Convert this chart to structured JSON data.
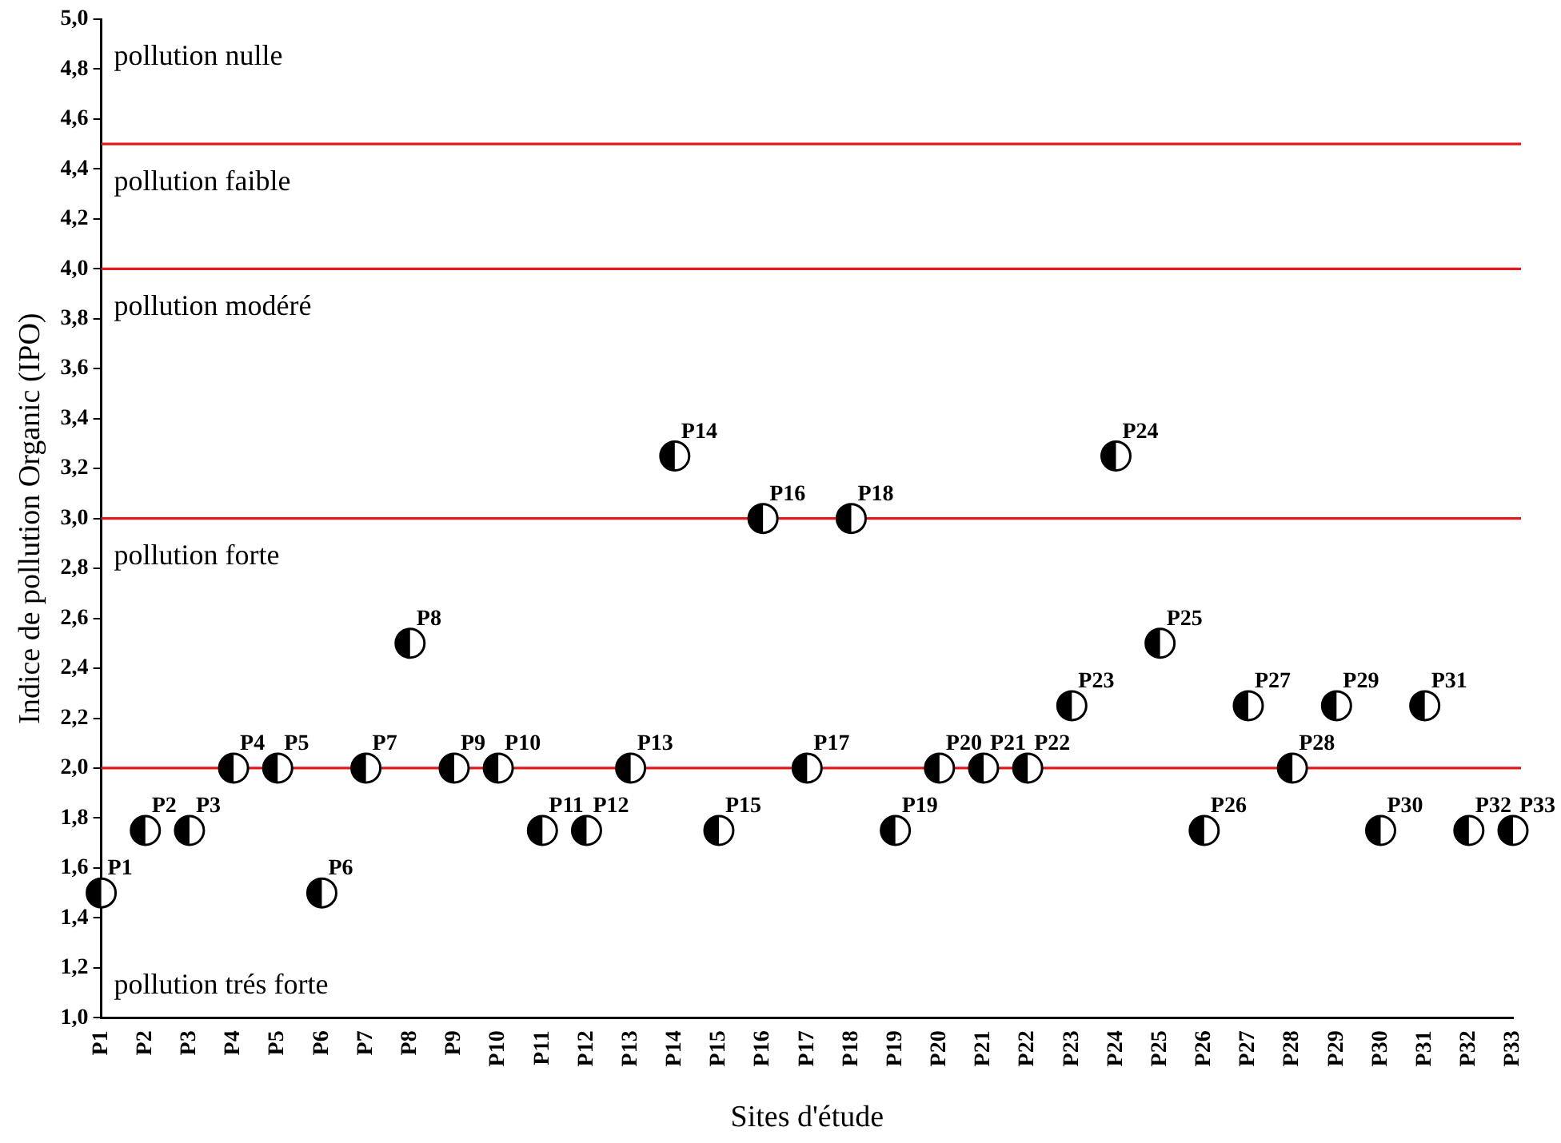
{
  "chart_data": {
    "type": "scatter",
    "xlabel": "Sites d'étude",
    "ylabel": "Indice de pollution Organic (IPO)",
    "categories": [
      "P1",
      "P2",
      "P3",
      "P4",
      "P5",
      "P6",
      "P7",
      "P8",
      "P9",
      "P10",
      "P11",
      "P12",
      "P13",
      "P14",
      "P15",
      "P16",
      "P17",
      "P18",
      "P19",
      "P20",
      "P21",
      "P22",
      "P23",
      "P24",
      "P25",
      "P26",
      "P27",
      "P28",
      "P29",
      "P30",
      "P31",
      "P32",
      "P33"
    ],
    "series": [
      {
        "color": "#000000",
        "values": [
          1.5,
          1.75,
          1.75,
          2.0,
          2.0,
          1.5,
          2.0,
          2.5,
          2.0,
          2.0,
          1.75,
          1.75,
          2.0,
          3.25,
          1.75,
          3.0,
          2.0,
          3.0,
          1.75,
          2.0,
          2.0,
          2.0,
          2.25,
          3.25,
          2.5,
          1.75,
          2.25,
          2.0,
          2.25,
          1.75,
          2.25,
          1.75,
          1.75
        ]
      }
    ],
    "marker": "circle",
    "legend": false,
    "grid": false,
    "ylim": [
      1.0,
      5.0
    ],
    "yticks": [
      {
        "value": 1.0,
        "label": "1,0"
      },
      {
        "value": 1.2,
        "label": "1,2"
      },
      {
        "value": 1.4,
        "label": "1,4"
      },
      {
        "value": 1.6,
        "label": "1,6"
      },
      {
        "value": 1.8,
        "label": "1,8"
      },
      {
        "value": 2.0,
        "label": "2,0"
      },
      {
        "value": 2.2,
        "label": "2,2"
      },
      {
        "value": 2.4,
        "label": "2,4"
      },
      {
        "value": 2.6,
        "label": "2,6"
      },
      {
        "value": 2.8,
        "label": "2,8"
      },
      {
        "value": 3.0,
        "label": "3,0"
      },
      {
        "value": 3.2,
        "label": "3,2"
      },
      {
        "value": 3.4,
        "label": "3,4"
      },
      {
        "value": 3.6,
        "label": "3,6"
      },
      {
        "value": 3.8,
        "label": "3,8"
      },
      {
        "value": 4.0,
        "label": "4,0"
      },
      {
        "value": 4.2,
        "label": "4,2"
      },
      {
        "value": 4.4,
        "label": "4,4"
      },
      {
        "value": 4.6,
        "label": "4,6"
      },
      {
        "value": 4.8,
        "label": "4,8"
      },
      {
        "value": 5.0,
        "label": "5,0"
      }
    ],
    "ref_lines": [
      {
        "axis": "y",
        "value": 4.5,
        "color": "#e31a1c"
      },
      {
        "axis": "y",
        "value": 4.0,
        "color": "#e31a1c"
      },
      {
        "axis": "y",
        "value": 3.0,
        "color": "#e31a1c"
      },
      {
        "axis": "y",
        "value": 2.0,
        "color": "#e31a1c"
      }
    ],
    "annotations": [
      "pollution nulle",
      "pollution faible",
      "pollution modéré",
      "pollution forte",
      "pollution trés forte",
      {
        "text": "P1",
        "x": "P1",
        "y": 1.5
      },
      {
        "text": "P2",
        "x": "P2",
        "y": 1.75
      },
      {
        "text": "P3",
        "x": "P3",
        "y": 1.75
      },
      {
        "text": "P4",
        "x": "P4",
        "y": 2.0
      },
      {
        "text": "P5",
        "x": "P5",
        "y": 2.0
      },
      {
        "text": "P6",
        "x": "P6",
        "y": 1.5
      },
      {
        "text": "P7",
        "x": "P7",
        "y": 2.0
      },
      {
        "text": "P8",
        "x": "P8",
        "y": 2.5
      },
      {
        "text": "P9",
        "x": "P9",
        "y": 2.0
      },
      {
        "text": "P10",
        "x": "P10",
        "y": 2.0
      },
      {
        "text": "P11",
        "x": "P11",
        "y": 1.75
      },
      {
        "text": "P12",
        "x": "P12",
        "y": 1.75
      },
      {
        "text": "P13",
        "x": "P13",
        "y": 2.0
      },
      {
        "text": "P14",
        "x": "P14",
        "y": 3.25
      },
      {
        "text": "P15",
        "x": "P15",
        "y": 1.75
      },
      {
        "text": "P16",
        "x": "P16",
        "y": 3.0
      },
      {
        "text": "P17",
        "x": "P17",
        "y": 2.0
      },
      {
        "text": "P18",
        "x": "P18",
        "y": 3.0
      },
      {
        "text": "P19",
        "x": "P19",
        "y": 1.75
      },
      {
        "text": "P20",
        "x": "P20",
        "y": 2.0
      },
      {
        "text": "P21",
        "x": "P21",
        "y": 2.0
      },
      {
        "text": "P22",
        "x": "P22",
        "y": 2.0
      },
      {
        "text": "P23",
        "x": "P23",
        "y": 2.25
      },
      {
        "text": "P24",
        "x": "P24",
        "y": 3.25
      },
      {
        "text": "P25",
        "x": "P25",
        "y": 2.5
      },
      {
        "text": "P26",
        "x": "P26",
        "y": 1.75
      },
      {
        "text": "P27",
        "x": "P27",
        "y": 2.25
      },
      {
        "text": "P28",
        "x": "P28",
        "y": 2.0
      },
      {
        "text": "P29",
        "x": "P29",
        "y": 2.25
      },
      {
        "text": "P30",
        "x": "P30",
        "y": 1.75
      },
      {
        "text": "P31",
        "x": "P31",
        "y": 2.25
      },
      {
        "text": "P32",
        "x": "P32",
        "y": 1.75
      },
      {
        "text": "P33",
        "x": "P33",
        "y": 1.75
      }
    ]
  }
}
